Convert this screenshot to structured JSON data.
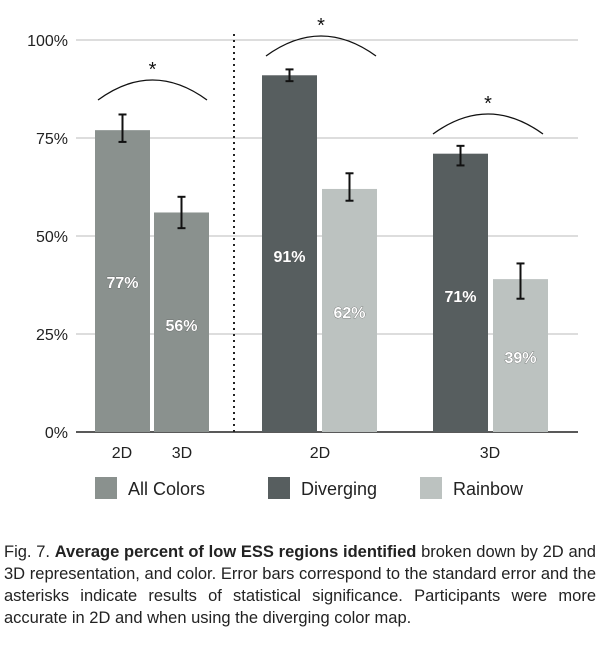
{
  "chart_data": {
    "type": "bar",
    "y_ticks": [
      "0%",
      "25%",
      "50%",
      "75%",
      "100%"
    ],
    "ylim": [
      0,
      100
    ],
    "grid": true,
    "groups": [
      {
        "label": "2D",
        "series": "All Colors",
        "value": 77,
        "value_label": "77%",
        "err_low": 74,
        "err_high": 81
      },
      {
        "label": "3D",
        "series": "All Colors",
        "value": 56,
        "value_label": "56%",
        "err_low": 52,
        "err_high": 60
      },
      {
        "label": "2D",
        "series": "Diverging",
        "value": 91,
        "value_label": "91%",
        "err_low": 89.5,
        "err_high": 92.5
      },
      {
        "label": "2D",
        "series": "Rainbow",
        "value": 62,
        "value_label": "62%",
        "err_low": 59,
        "err_high": 66
      },
      {
        "label": "3D",
        "series": "Diverging",
        "value": 71,
        "value_label": "71%",
        "err_low": 68,
        "err_high": 73
      },
      {
        "label": "3D",
        "series": "Rainbow",
        "value": 39,
        "value_label": "39%",
        "err_low": 34,
        "err_high": 43
      }
    ],
    "x_labels": [
      "2D",
      "3D",
      "2D",
      "3D"
    ],
    "significance_marker": "*",
    "legend": [
      {
        "name": "All Colors",
        "color": "#8a918e"
      },
      {
        "name": "Diverging",
        "color": "#575e5f"
      },
      {
        "name": "Rainbow",
        "color": "#bcc2c0"
      }
    ],
    "legend_placement": "bottom"
  },
  "caption": {
    "prefix": "Fig. 7. ",
    "bold": "Average percent of low ESS regions identified",
    "rest": " broken down by 2D and 3D representation, and color.  Error bars correspond to the standard error and the asterisks indicate results of statistical significance. Participants were more accurate in 2D and when using the diverging color map."
  }
}
